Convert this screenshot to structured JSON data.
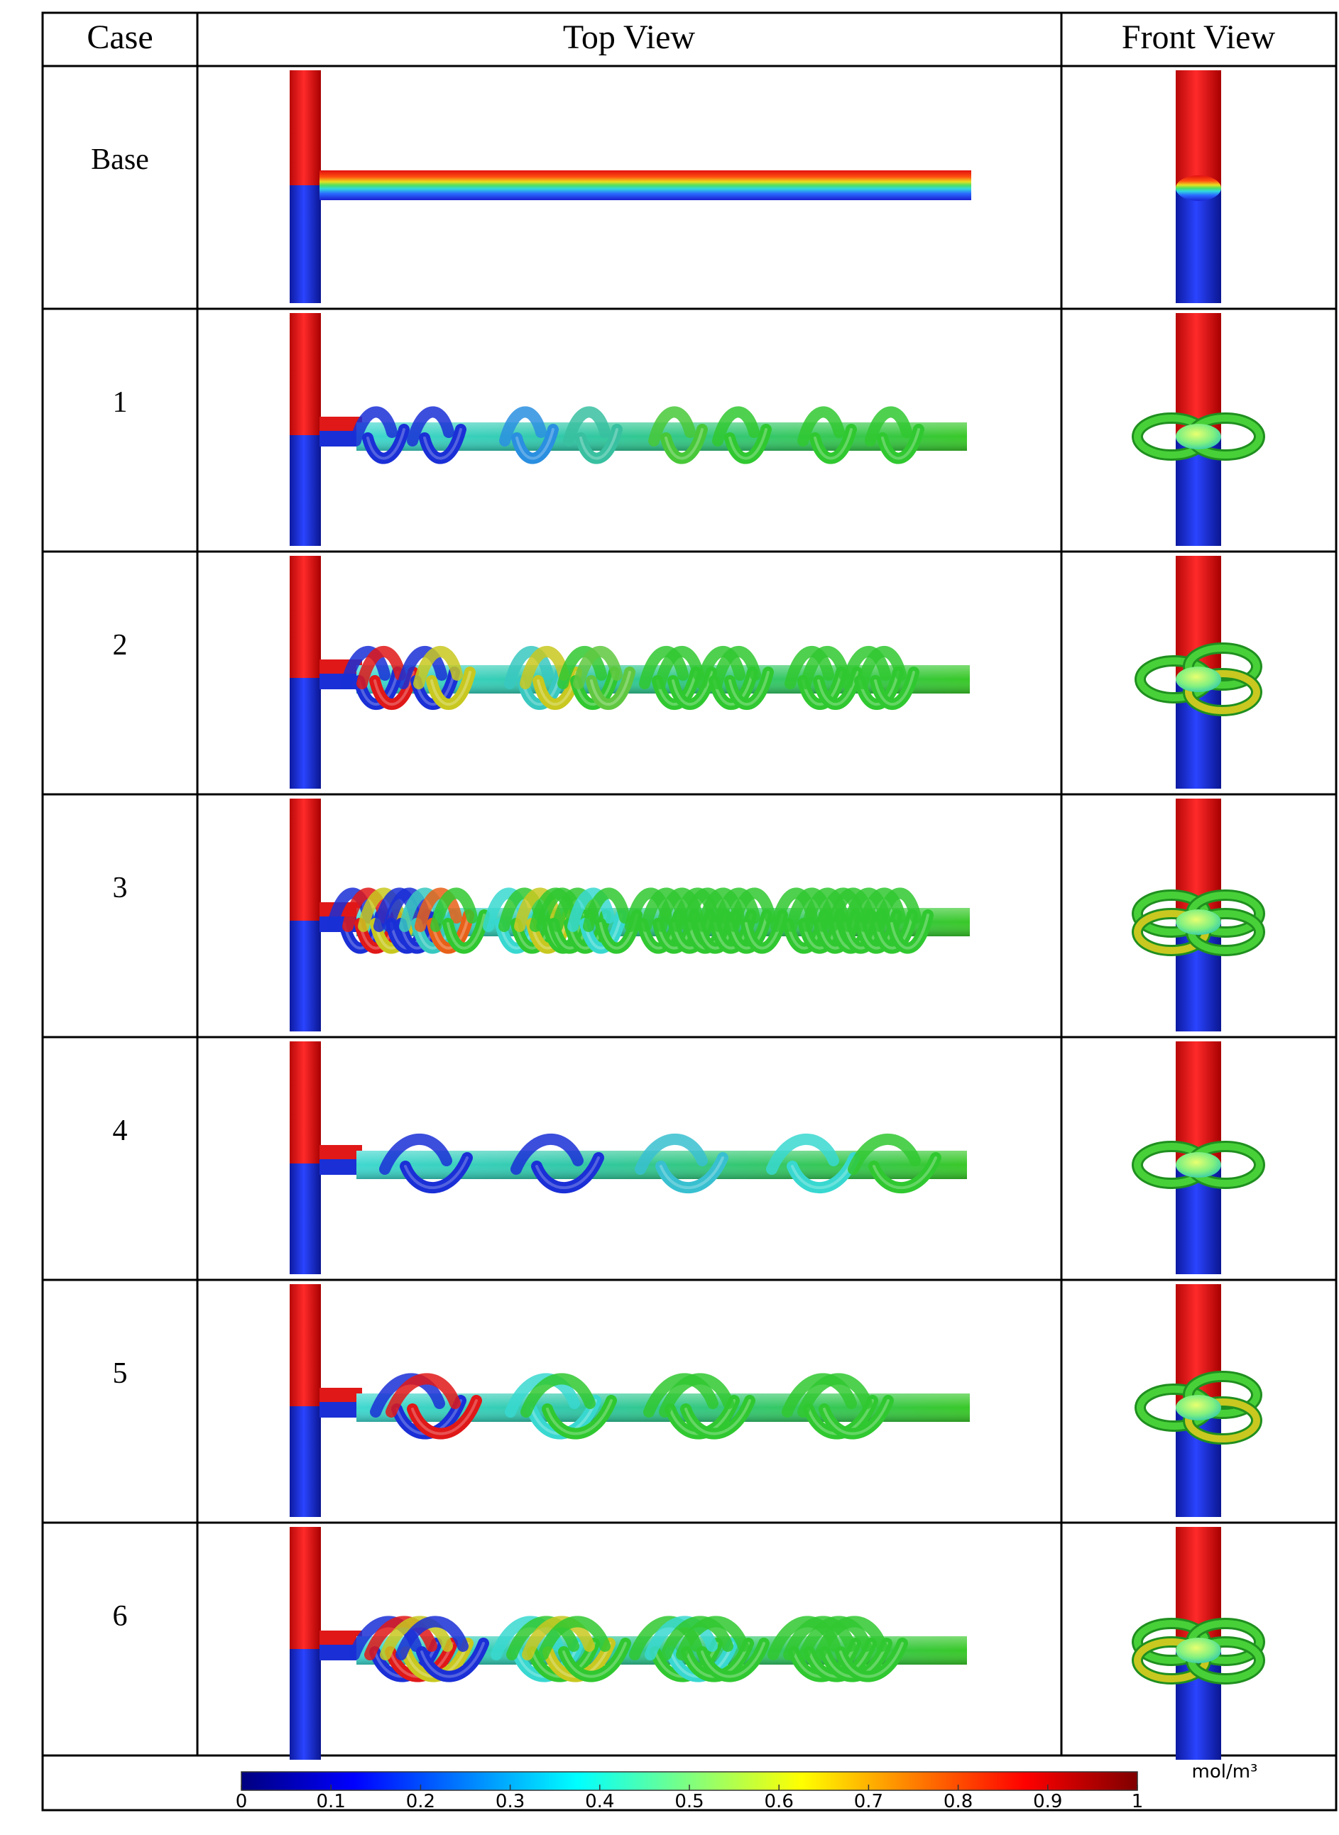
{
  "table": {
    "headers": {
      "case": "Case",
      "top_view": "Top View",
      "front_view": "Front View"
    },
    "rows": [
      {
        "case": "Base",
        "top": "straight channel",
        "front": "straight"
      },
      {
        "case": "1",
        "top": "single helix, uniform pitch",
        "front": "single-ring"
      },
      {
        "case": "2",
        "top": "double helix, uniform pitch",
        "front": "double-ring"
      },
      {
        "case": "3",
        "top": "quad helix, uniform pitch",
        "front": "quad-ring"
      },
      {
        "case": "4",
        "top": "single helix, longer pitch",
        "front": "single-ring"
      },
      {
        "case": "5",
        "top": "double helix, longer pitch",
        "front": "double-ring"
      },
      {
        "case": "6",
        "top": "quad helix, longer pitch",
        "front": "quad-ring"
      }
    ]
  },
  "colorbar": {
    "unit": "mol/m³",
    "min": 0,
    "max": 1,
    "ticks": [
      "0",
      "0.1",
      "0.2",
      "0.3",
      "0.4",
      "0.5",
      "0.6",
      "0.7",
      "0.8",
      "0.9",
      "1"
    ],
    "colors": [
      "#00007f",
      "#0000ff",
      "#007fff",
      "#00ffff",
      "#7fff7f",
      "#ffff00",
      "#ff7f00",
      "#ff0000",
      "#7f0000"
    ]
  },
  "colors": {
    "red": "#e01818",
    "blue": "#1a2fd6",
    "green": "#30c830",
    "cyan": "#38d8d0",
    "yellow": "#c8c820",
    "orange": "#e86018"
  }
}
